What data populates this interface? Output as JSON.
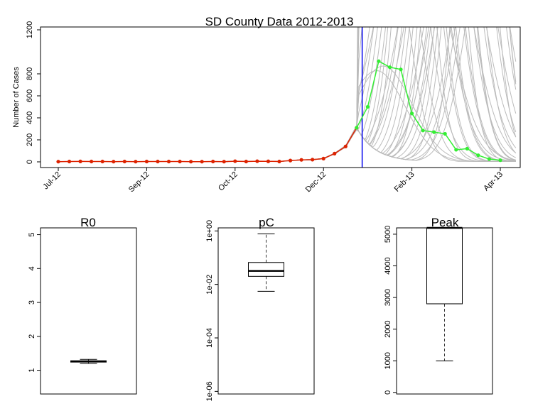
{
  "chart_data": [
    {
      "type": "line",
      "title": "SD County Data 2012-2013",
      "ylabel": "Number of Cases",
      "xlabel": "",
      "ylim": [
        0,
        1230
      ],
      "y_ticks": [
        0,
        200,
        400,
        600,
        800,
        1200
      ],
      "x_tick_labels": [
        "Jul-12",
        "Sep-12",
        "Oct-12",
        "Dec-12",
        "Feb-13",
        "Apr-13"
      ],
      "x_tick_weeks": [
        0,
        8,
        16,
        24,
        32,
        40
      ],
      "forecast_week": 27.5,
      "series": [
        {
          "role": "observed-fit",
          "color": "#dd2200",
          "values": [
            2,
            3,
            4,
            3,
            3,
            2,
            3,
            2,
            3,
            3,
            3,
            3,
            2,
            2,
            3,
            2,
            6,
            3,
            6,
            5,
            3,
            12,
            18,
            20,
            30,
            75,
            140,
            310
          ]
        },
        {
          "role": "observed-after",
          "color": "#33ee33",
          "start_week": 27,
          "values": [
            310,
            500,
            915,
            860,
            840,
            440,
            285,
            270,
            255,
            110,
            120,
            60,
            25,
            15
          ]
        },
        {
          "role": "simulations",
          "color": "#bbbbbb",
          "count": 40
        }
      ],
      "grid": false,
      "legend": "none"
    },
    {
      "type": "box",
      "title": "R0",
      "ylim": [
        0.3,
        5.2
      ],
      "y_ticks": [
        1,
        2,
        3,
        4,
        5
      ],
      "box": {
        "min": 1.2,
        "q1": 1.24,
        "median": 1.26,
        "q3": 1.28,
        "max": 1.32
      }
    },
    {
      "type": "box",
      "title": "pC",
      "scale": "log",
      "ylim": [
        8e-07,
        1.3
      ],
      "y_ticks": [
        1e-06,
        0.0001,
        0.01,
        1
      ],
      "y_tick_labels": [
        "1e-06",
        "1e-04",
        "1e-02",
        "1e+00"
      ],
      "box": {
        "min": 0.0055,
        "q1": 0.02,
        "median": 0.032,
        "q3": 0.066,
        "max": 0.78
      }
    },
    {
      "type": "box",
      "title": "Peak",
      "ylim": [
        -50,
        5200
      ],
      "y_ticks": [
        0,
        1000,
        2000,
        3000,
        4000,
        5000
      ],
      "box": {
        "min": 1000,
        "q1": 2800,
        "median": 5200,
        "q3": 5200,
        "max": 5200
      }
    }
  ]
}
